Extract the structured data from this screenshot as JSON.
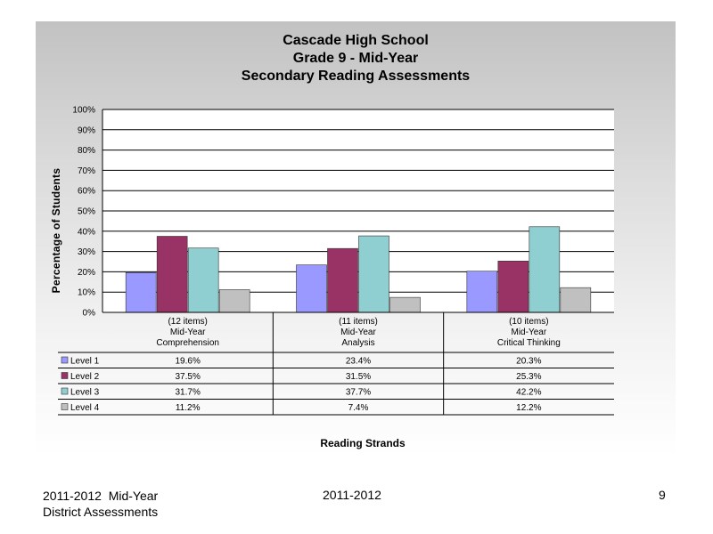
{
  "chart_data": {
    "type": "bar",
    "title_lines": [
      "Cascade High School",
      "Grade 9 - Mid-Year",
      "Secondary Reading Assessments"
    ],
    "xlabel": "Reading Strands",
    "ylabel": "Percentage of Students",
    "ylim": [
      0,
      100
    ],
    "yticks": [
      "0%",
      "10%",
      "20%",
      "30%",
      "40%",
      "50%",
      "60%",
      "70%",
      "80%",
      "90%",
      "100%"
    ],
    "categories": [
      [
        "(12 items)",
        "Mid-Year",
        "Comprehension"
      ],
      [
        "(11 items)",
        "Mid-Year",
        "Analysis"
      ],
      [
        "(10 items)",
        "Mid-Year",
        "Critical Thinking"
      ]
    ],
    "series": [
      {
        "name": "Level 1",
        "color": "#9999ff",
        "values": [
          19.6,
          23.4,
          20.3
        ],
        "labels": [
          "19.6%",
          "23.4%",
          "20.3%"
        ]
      },
      {
        "name": "Level 2",
        "color": "#993366",
        "values": [
          37.5,
          31.5,
          25.3
        ],
        "labels": [
          "37.5%",
          "31.5%",
          "25.3%"
        ]
      },
      {
        "name": "Level 3",
        "color": "#8fcfd1",
        "values": [
          31.7,
          37.7,
          42.2
        ],
        "labels": [
          "31.7%",
          "37.7%",
          "42.2%"
        ]
      },
      {
        "name": "Level 4",
        "color": "#c0c0c0",
        "values": [
          11.2,
          7.4,
          12.2
        ],
        "labels": [
          "11.2%",
          "7.4%",
          "12.2%"
        ]
      }
    ],
    "grid": true,
    "legend": "data-table"
  },
  "footer": {
    "left_line1": "2011-2012  Mid-Year",
    "left_line2": "District Assessments",
    "center": "2011-2012",
    "page_number": "9"
  }
}
